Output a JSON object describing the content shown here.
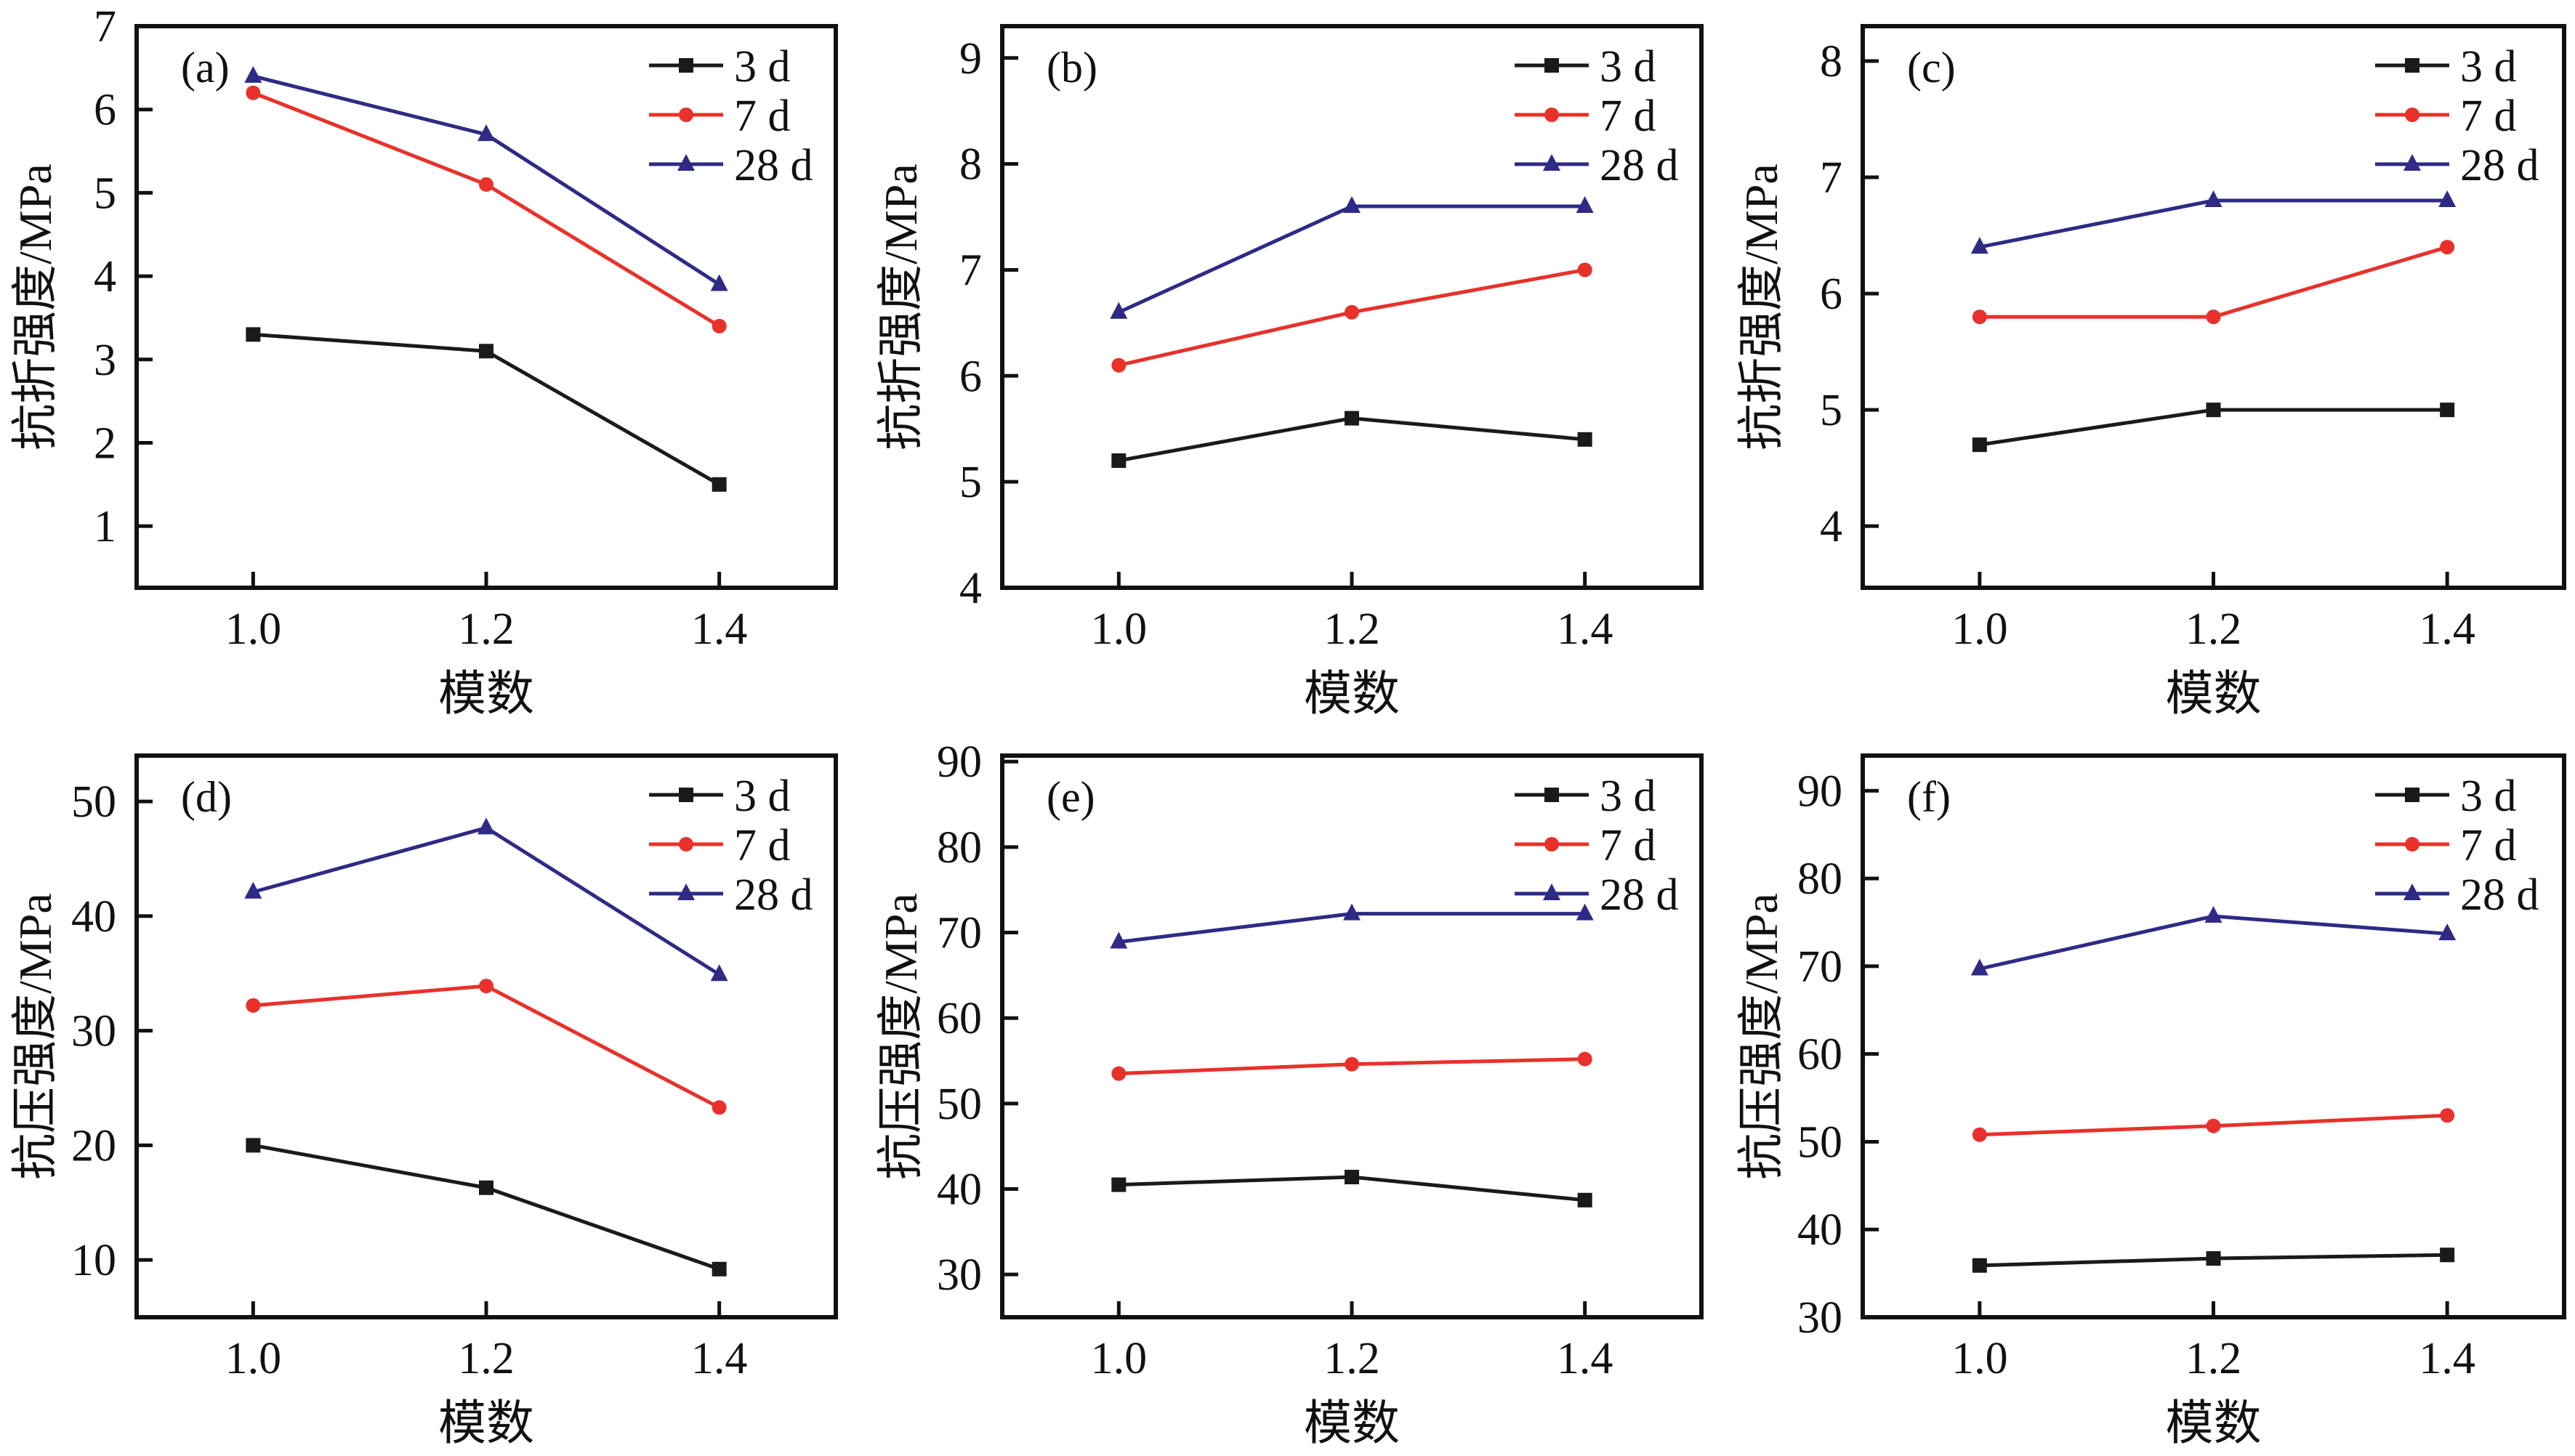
{
  "chart_data": [
    {
      "type": "line",
      "panel_label": "(a)",
      "xlabel": "模数",
      "ylabel": "抗折强度/MPa",
      "x": [
        1.0,
        1.2,
        1.4
      ],
      "xticks": [
        "1.0",
        "1.2",
        "1.4"
      ],
      "xlim": [
        0.9,
        1.5
      ],
      "yticks": [
        1,
        2,
        3,
        4,
        5,
        6,
        7
      ],
      "ylim": [
        0.26,
        7
      ],
      "legend": "top-right",
      "series": [
        {
          "name": "3 d",
          "marker": "square",
          "color": "#1a1a1a",
          "values": [
            3.3,
            3.1,
            1.5
          ]
        },
        {
          "name": "7 d",
          "marker": "circle",
          "color": "#e8312a",
          "values": [
            6.2,
            5.1,
            3.4
          ]
        },
        {
          "name": "28 d",
          "marker": "triangle",
          "color": "#2e2a86",
          "values": [
            6.4,
            5.7,
            3.9
          ]
        }
      ]
    },
    {
      "type": "line",
      "panel_label": "(b)",
      "xlabel": "模数",
      "ylabel": "抗折强度/MPa",
      "x": [
        1.0,
        1.2,
        1.4
      ],
      "xticks": [
        "1.0",
        "1.2",
        "1.4"
      ],
      "xlim": [
        0.9,
        1.5
      ],
      "yticks": [
        4,
        5,
        6,
        7,
        8,
        9
      ],
      "ylim": [
        4,
        9.3
      ],
      "legend": "top-right",
      "series": [
        {
          "name": "3 d",
          "marker": "square",
          "color": "#1a1a1a",
          "values": [
            5.2,
            5.6,
            5.4
          ]
        },
        {
          "name": "7 d",
          "marker": "circle",
          "color": "#e8312a",
          "values": [
            6.1,
            6.6,
            7.0
          ]
        },
        {
          "name": "28 d",
          "marker": "triangle",
          "color": "#2e2a86",
          "values": [
            6.6,
            7.6,
            7.6
          ]
        }
      ]
    },
    {
      "type": "line",
      "panel_label": "(c)",
      "xlabel": "模数",
      "ylabel": "抗折强度/MPa",
      "x": [
        1.0,
        1.2,
        1.4
      ],
      "xticks": [
        "1.0",
        "1.2",
        "1.4"
      ],
      "xlim": [
        0.9,
        1.5
      ],
      "yticks": [
        4,
        5,
        6,
        7,
        8
      ],
      "ylim": [
        3.47,
        8.3
      ],
      "legend": "top-right",
      "series": [
        {
          "name": "3 d",
          "marker": "square",
          "color": "#1a1a1a",
          "values": [
            4.7,
            5.0,
            5.0
          ]
        },
        {
          "name": "7 d",
          "marker": "circle",
          "color": "#e8312a",
          "values": [
            5.8,
            5.8,
            6.4
          ]
        },
        {
          "name": "28 d",
          "marker": "triangle",
          "color": "#2e2a86",
          "values": [
            6.4,
            6.8,
            6.8
          ]
        }
      ]
    },
    {
      "type": "line",
      "panel_label": "(d)",
      "xlabel": "模数",
      "ylabel": "抗压强度/MPa",
      "x": [
        1.0,
        1.2,
        1.4
      ],
      "xticks": [
        "1.0",
        "1.2",
        "1.4"
      ],
      "xlim": [
        0.9,
        1.5
      ],
      "yticks": [
        10,
        20,
        30,
        40,
        50
      ],
      "ylim": [
        5,
        54
      ],
      "legend": "top-right",
      "series": [
        {
          "name": "3 d",
          "marker": "square",
          "color": "#1a1a1a",
          "values": [
            20.0,
            16.3,
            9.2
          ]
        },
        {
          "name": "7 d",
          "marker": "circle",
          "color": "#e8312a",
          "values": [
            32.2,
            33.9,
            23.3
          ]
        },
        {
          "name": "28 d",
          "marker": "triangle",
          "color": "#2e2a86",
          "values": [
            42.1,
            47.7,
            34.9
          ]
        }
      ]
    },
    {
      "type": "line",
      "panel_label": "(e)",
      "xlabel": "模数",
      "ylabel": "抗压强度/MPa",
      "x": [
        1.0,
        1.2,
        1.4
      ],
      "xticks": [
        "1.0",
        "1.2",
        "1.4"
      ],
      "xlim": [
        0.9,
        1.5
      ],
      "yticks": [
        30,
        40,
        50,
        60,
        70,
        80,
        90
      ],
      "ylim": [
        25,
        90.7
      ],
      "legend": "top-right",
      "series": [
        {
          "name": "3 d",
          "marker": "square",
          "color": "#1a1a1a",
          "values": [
            40.5,
            41.4,
            38.7
          ]
        },
        {
          "name": "7 d",
          "marker": "circle",
          "color": "#e8312a",
          "values": [
            53.5,
            54.6,
            55.2
          ]
        },
        {
          "name": "28 d",
          "marker": "triangle",
          "color": "#2e2a86",
          "values": [
            68.9,
            72.2,
            72.2
          ]
        }
      ]
    },
    {
      "type": "line",
      "panel_label": "(f)",
      "xlabel": "模数",
      "ylabel": "抗压强度/MPa",
      "x": [
        1.0,
        1.2,
        1.4
      ],
      "xticks": [
        "1.0",
        "1.2",
        "1.4"
      ],
      "xlim": [
        0.9,
        1.5
      ],
      "yticks": [
        30,
        40,
        50,
        60,
        70,
        80,
        90
      ],
      "ylim": [
        30,
        94
      ],
      "legend": "top-right",
      "series": [
        {
          "name": "3 d",
          "marker": "square",
          "color": "#1a1a1a",
          "values": [
            35.9,
            36.7,
            37.1
          ]
        },
        {
          "name": "7 d",
          "marker": "circle",
          "color": "#e8312a",
          "values": [
            50.8,
            51.8,
            53.0
          ]
        },
        {
          "name": "28 d",
          "marker": "triangle",
          "color": "#2e2a86",
          "values": [
            69.7,
            75.7,
            73.7
          ]
        }
      ]
    }
  ]
}
